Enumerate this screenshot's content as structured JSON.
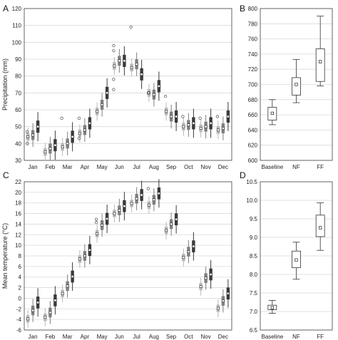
{
  "chart_data": [
    {
      "id": "A",
      "panel_label": "A",
      "type": "box",
      "ylabel": "Precipitation (mm)",
      "ylim": [
        30,
        120
      ],
      "yticks": [
        30,
        40,
        50,
        60,
        70,
        80,
        90,
        100,
        110,
        120
      ],
      "grid": true,
      "categories": [
        "Jan",
        "Feb",
        "Mar",
        "Apr",
        "May",
        "Jun",
        "Jul",
        "Aug",
        "Sep",
        "Oct",
        "Nov",
        "Dec"
      ],
      "baseline_medians": [
        44,
        35,
        38,
        46,
        59,
        86,
        85,
        70,
        59,
        50,
        49,
        48
      ],
      "nf_medians": [
        45,
        37,
        40,
        48,
        63,
        89,
        87,
        69,
        56,
        51,
        50,
        49
      ],
      "ff_medians": [
        50,
        39,
        44,
        52,
        70,
        89,
        81,
        74,
        56,
        52,
        52,
        56
      ],
      "outliers": [
        [
          40,
          47
        ],
        [],
        [
          55
        ],
        [
          55,
          43
        ],
        [],
        [
          98,
          95,
          78,
          72
        ],
        [
          109
        ],
        [
          70
        ],
        [
          68
        ],
        [
          56
        ],
        [
          55
        ],
        [
          56
        ]
      ]
    },
    {
      "id": "B",
      "panel_label": "B",
      "type": "box",
      "ylim": [
        600,
        800
      ],
      "yticks": [
        600,
        620,
        640,
        660,
        680,
        700,
        720,
        740,
        760,
        780,
        800
      ],
      "grid": true,
      "categories": [
        "Baseline",
        "NF",
        "FF"
      ],
      "boxes": [
        {
          "min": 647,
          "q1": 653,
          "median": 662,
          "q3": 670,
          "max": 680
        },
        {
          "min": 676,
          "q1": 686,
          "median": 700,
          "q3": 709,
          "max": 733
        },
        {
          "min": 698,
          "q1": 704,
          "median": 730,
          "q3": 747,
          "max": 790
        }
      ]
    },
    {
      "id": "C",
      "panel_label": "C",
      "type": "box",
      "ylabel": "Mean temperature (°C)",
      "ylim": [
        -6,
        22
      ],
      "yticks": [
        -6,
        -4,
        -2,
        0,
        2,
        4,
        6,
        8,
        10,
        12,
        14,
        16,
        18,
        20,
        22
      ],
      "grid": true,
      "categories": [
        "Jan",
        "Feb",
        "Mar",
        "Apr",
        "May",
        "Jun",
        "Jul",
        "Aug",
        "Sep",
        "Oct",
        "Nov",
        "Dec"
      ],
      "baseline_medians": [
        -3.9,
        -3.6,
        0.9,
        7.4,
        12.2,
        16.0,
        17.9,
        17.6,
        12.8,
        7.7,
        2.2,
        -1.9
      ],
      "nf_medians": [
        -2.3,
        -2.7,
        2.3,
        8.0,
        13.8,
        16.6,
        18.8,
        18.6,
        14.0,
        8.8,
        3.8,
        -0.5
      ],
      "ff_medians": [
        -0.8,
        -0.4,
        4.1,
        9.1,
        15.0,
        17.4,
        19.5,
        19.8,
        14.9,
        9.8,
        4.5,
        0.9
      ],
      "outliers": [
        [],
        [],
        [],
        [],
        [
          14.3,
          14.9
        ],
        [],
        [],
        [
          20.7
        ],
        [],
        [],
        [],
        []
      ]
    },
    {
      "id": "D",
      "panel_label": "D",
      "type": "box",
      "ylim": [
        6.5,
        10.5
      ],
      "yticks": [
        6.5,
        7.0,
        7.5,
        8.0,
        8.5,
        9.0,
        9.5,
        10.0,
        10.5
      ],
      "grid": true,
      "categories": [
        "Baseline",
        "NF",
        "FF"
      ],
      "boxes": [
        {
          "min": 6.95,
          "q1": 7.05,
          "median": 7.1,
          "q3": 7.17,
          "max": 7.3
        },
        {
          "min": 7.87,
          "q1": 8.18,
          "median": 8.39,
          "q3": 8.63,
          "max": 8.87
        },
        {
          "min": 8.65,
          "q1": 9.02,
          "median": 9.26,
          "q3": 9.6,
          "max": 9.93
        }
      ]
    }
  ]
}
